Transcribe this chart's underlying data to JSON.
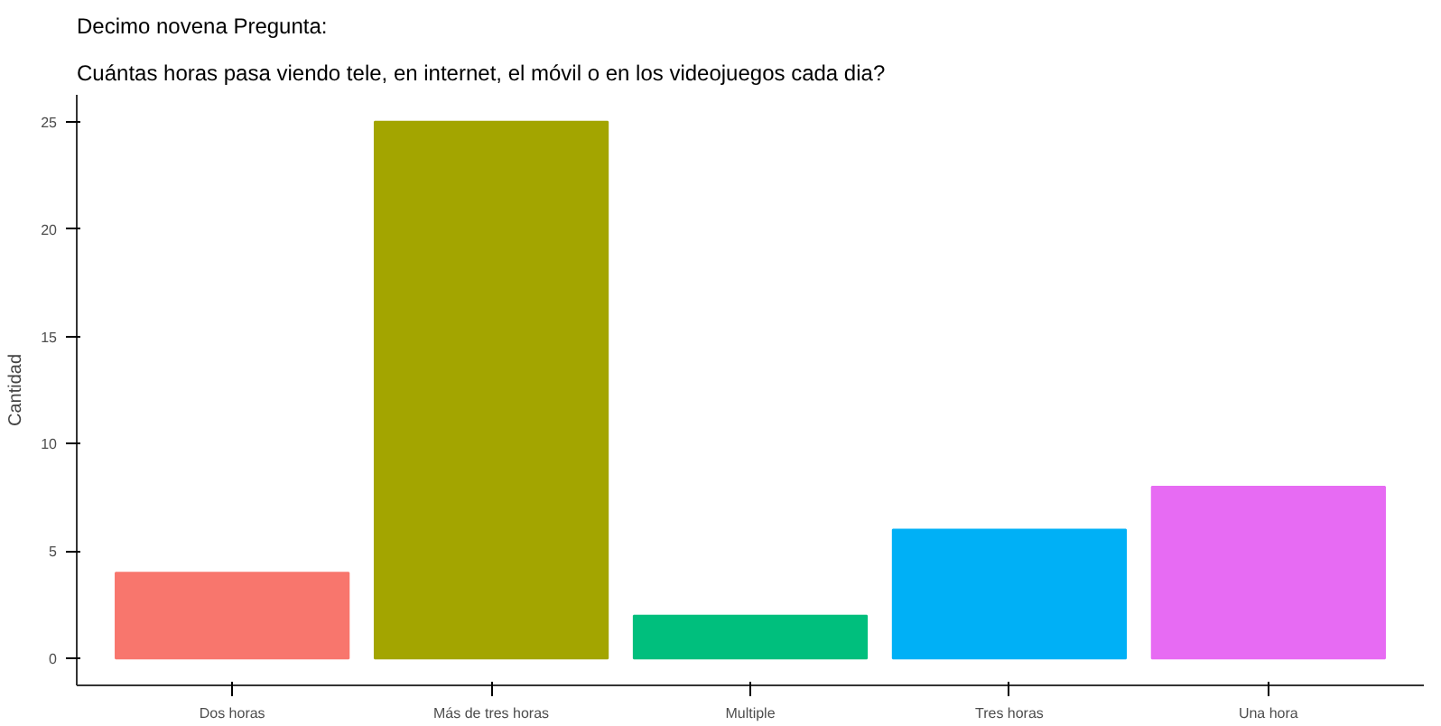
{
  "chart_data": {
    "type": "bar",
    "title": "Decimo novena Pregunta:",
    "subtitle": "Cuántas horas pasa viendo tele, en internet, el móvil o en los videojuegos cada dia?",
    "ylabel": "Cantidad",
    "categories": [
      "Dos horas",
      "Más de tres horas",
      "Multiple",
      "Tres horas",
      "Una hora"
    ],
    "values": [
      4,
      25,
      2,
      6,
      8
    ],
    "colors": [
      "#f8766d",
      "#a3a500",
      "#00bf7d",
      "#00b0f6",
      "#e76bf3"
    ],
    "ylim": [
      -1.25,
      26.25
    ],
    "yticks": [
      0,
      5,
      10,
      15,
      20,
      25
    ],
    "grid": false
  }
}
